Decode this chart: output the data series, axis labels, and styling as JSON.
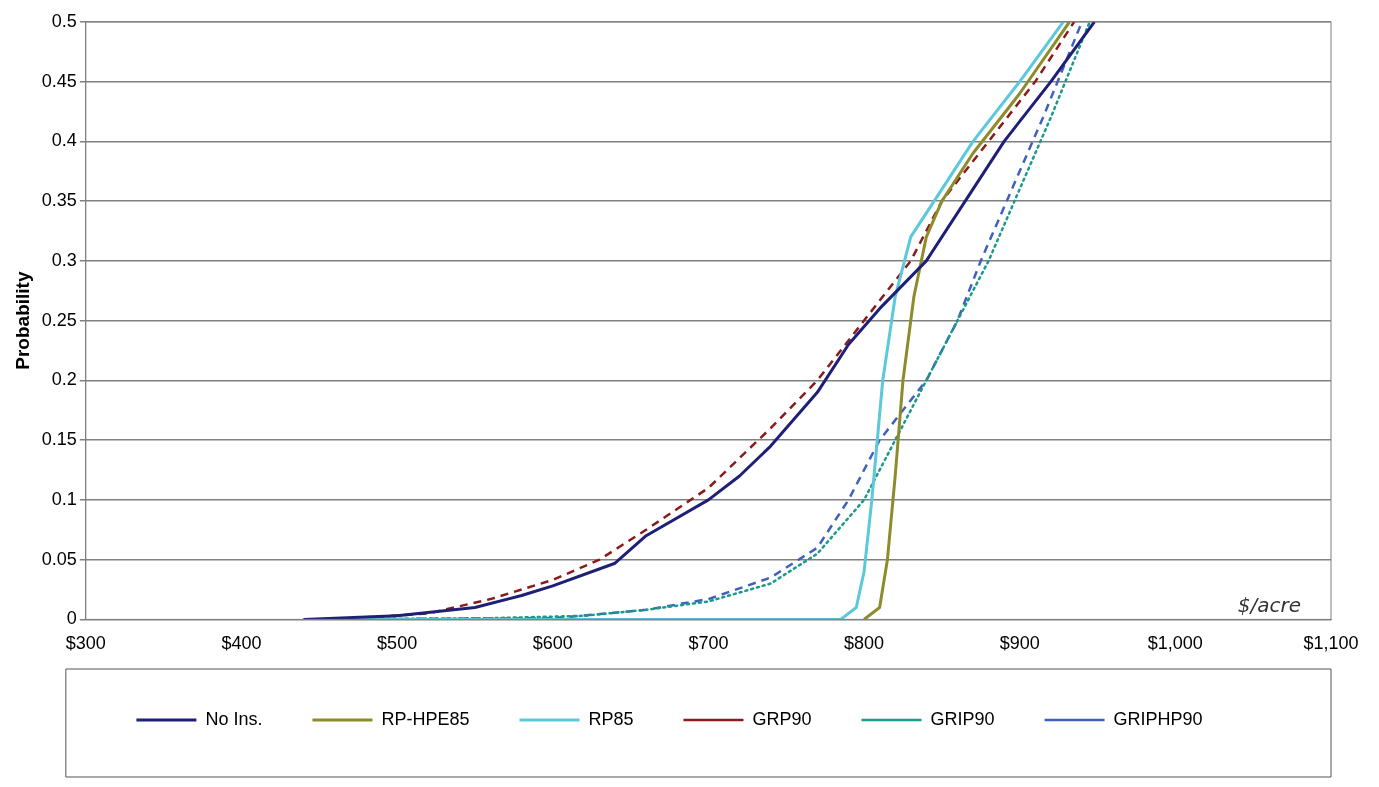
{
  "chart_data": {
    "type": "line",
    "ylabel": "Probability",
    "annotations": [
      "$/acre"
    ],
    "xlim": [
      300,
      1100
    ],
    "xticks": [
      {
        "value": 300,
        "label": "$300"
      },
      {
        "value": 400,
        "label": "$400"
      },
      {
        "value": 500,
        "label": "$500"
      },
      {
        "value": 600,
        "label": "$600"
      },
      {
        "value": 700,
        "label": "$700"
      },
      {
        "value": 800,
        "label": "$800"
      },
      {
        "value": 900,
        "label": "$900"
      },
      {
        "value": 1000,
        "label": "$1,000"
      },
      {
        "value": 1100,
        "label": "$1,100"
      }
    ],
    "ylim": [
      0,
      0.5
    ],
    "yticks": [
      0,
      0.05,
      0.1,
      0.15,
      0.2,
      0.25,
      0.3,
      0.35,
      0.4,
      0.45,
      0.5
    ],
    "grid": "y",
    "legend": "bottom",
    "marker": "none",
    "series": [
      {
        "name": "No Ins.",
        "color": "#1f1f78",
        "line_style": "solid",
        "x": [
          440,
          500,
          550,
          580,
          600,
          640,
          660,
          700,
          720,
          740,
          770,
          790,
          810,
          840,
          870,
          890,
          920,
          948
        ],
        "values": [
          0,
          0.003,
          0.01,
          0.02,
          0.028,
          0.047,
          0.07,
          0.1,
          0.12,
          0.145,
          0.19,
          0.23,
          0.26,
          0.3,
          0.36,
          0.4,
          0.45,
          0.5
        ]
      },
      {
        "name": "RP-HPE85",
        "color": "#8c8c2a",
        "line_style": "solid",
        "x": [
          800,
          810,
          815,
          820,
          825,
          832,
          840,
          850,
          870,
          900,
          932
        ],
        "values": [
          0,
          0.01,
          0.05,
          0.12,
          0.2,
          0.27,
          0.32,
          0.35,
          0.39,
          0.44,
          0.5
        ]
      },
      {
        "name": "RP85",
        "color": "#5bc8dc",
        "line_style": "solid",
        "x": [
          440,
          785,
          795,
          800,
          805,
          812,
          820,
          830,
          845,
          870,
          900,
          928
        ],
        "values": [
          0,
          0,
          0.01,
          0.04,
          0.1,
          0.2,
          0.27,
          0.32,
          0.35,
          0.4,
          0.45,
          0.5
        ]
      },
      {
        "name": "GRP90",
        "color": "#8b1a1a",
        "line_style": "dashed",
        "x": [
          460,
          520,
          560,
          600,
          630,
          660,
          700,
          740,
          770,
          800,
          830,
          850,
          880,
          910,
          935
        ],
        "values": [
          0,
          0.005,
          0.017,
          0.033,
          0.05,
          0.075,
          0.11,
          0.16,
          0.2,
          0.25,
          0.3,
          0.35,
          0.4,
          0.45,
          0.5
        ]
      },
      {
        "name": "GRIP90",
        "color": "#1a9a8a",
        "line_style": "dotted",
        "x": [
          440,
          560,
          620,
          660,
          700,
          740,
          770,
          800,
          820,
          840,
          860,
          880,
          900,
          920,
          945
        ],
        "values": [
          0,
          0.001,
          0.003,
          0.008,
          0.015,
          0.03,
          0.055,
          0.1,
          0.15,
          0.2,
          0.25,
          0.3,
          0.36,
          0.42,
          0.5
        ]
      },
      {
        "name": "GRIPHP90",
        "color": "#4060c0",
        "line_style": "dashed",
        "x": [
          440,
          600,
          660,
          700,
          740,
          770,
          790,
          810,
          840,
          860,
          875,
          895,
          915,
          940
        ],
        "values": [
          0,
          0.001,
          0.008,
          0.017,
          0.035,
          0.06,
          0.1,
          0.15,
          0.2,
          0.25,
          0.3,
          0.36,
          0.42,
          0.5
        ]
      }
    ]
  }
}
